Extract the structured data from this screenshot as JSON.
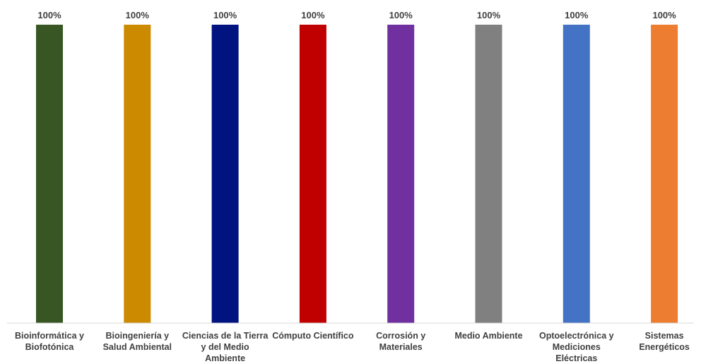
{
  "chart_data": {
    "type": "bar",
    "title": "",
    "xlabel": "",
    "ylabel": "",
    "ylim": [
      0,
      100
    ],
    "grid": false,
    "legend": "none",
    "categories": [
      "Bioinformática y Biofotónica",
      "Bioingeniería y Salud Ambiental",
      "Ciencias de la Tierra y del Medio Ambiente",
      "Cómputo Científico",
      "Corrosión y Materiales",
      "Medio Ambiente",
      "Optoelectrónica y Mediciones Eléctricas",
      "Sistemas Energéticos"
    ],
    "values": [
      100,
      100,
      100,
      100,
      100,
      100,
      100,
      100
    ],
    "data_labels": [
      "100%",
      "100%",
      "100%",
      "100%",
      "100%",
      "100%",
      "100%",
      "100%"
    ],
    "colors": [
      "#375623",
      "#CC8A00",
      "#00137F",
      "#C00000",
      "#7030A0",
      "#808080",
      "#4472C4",
      "#ED7D31"
    ]
  }
}
